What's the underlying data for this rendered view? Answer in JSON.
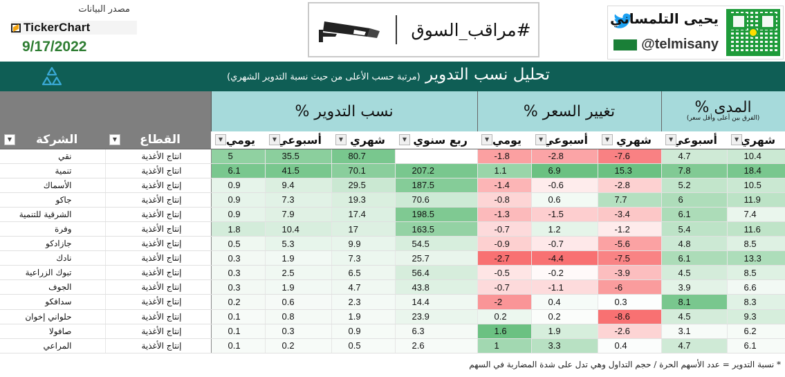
{
  "header": {
    "source_label": "مصدر البيانات",
    "provider_name": "TickerChart",
    "date": "9/17/2022",
    "banner_title": "#مراقب_السوق",
    "author_name": "يحيى التلمساني",
    "author_handle": "@telmisany"
  },
  "title_bar": {
    "title": "تحليل نسب التدوير",
    "subtitle": "(مرتبة حسب الأعلى من حيث نسبة التدوير الشهري)"
  },
  "groups": {
    "turnover": "نسب التدوير %",
    "price_change": "تغيير السعر %",
    "range": "المدى %",
    "range_note": "(الفرق بين أعلى وأقل سعر)"
  },
  "columns": {
    "company": "الشركة",
    "sector": "القطاع",
    "daily": "يومي",
    "weekly": "أسبوعي",
    "monthly": "شهري",
    "quarter_annual": "ربع سنوي"
  },
  "colors": {
    "title_bar": "#0f5e55",
    "group_header": "#a6dadb",
    "positive_strong": "#63be7b",
    "negative_strong": "#f8696b",
    "date_green": "#2e7d32"
  },
  "rows": [
    {
      "company": "نقي",
      "sector": "انتاج الأغذية",
      "t_daily": "5",
      "t_weekly": "35.5",
      "t_monthly": "80.7",
      "t_quarter": "",
      "p_daily": "-1.8",
      "p_weekly": "-2.8",
      "p_monthly": "-7.6",
      "r_weekly": "4.7",
      "r_monthly": "10.4"
    },
    {
      "company": "تنمية",
      "sector": "انتاج الأغذية",
      "t_daily": "6.1",
      "t_weekly": "41.5",
      "t_monthly": "70.1",
      "t_quarter": "207.2",
      "p_daily": "1.1",
      "p_weekly": "6.9",
      "p_monthly": "15.3",
      "r_weekly": "7.8",
      "r_monthly": "18.4"
    },
    {
      "company": "الأسماك",
      "sector": "إنتاج الأغذية",
      "t_daily": "0.9",
      "t_weekly": "9.4",
      "t_monthly": "29.5",
      "t_quarter": "187.5",
      "p_daily": "-1.4",
      "p_weekly": "-0.6",
      "p_monthly": "-2.8",
      "r_weekly": "5.2",
      "r_monthly": "10.5"
    },
    {
      "company": "جاكو",
      "sector": "إنتاج الأغذية",
      "t_daily": "0.9",
      "t_weekly": "7.3",
      "t_monthly": "19.3",
      "t_quarter": "70.6",
      "p_daily": "-0.8",
      "p_weekly": "0.6",
      "p_monthly": "7.7",
      "r_weekly": "6",
      "r_monthly": "11.9"
    },
    {
      "company": "الشرقية للتنمية",
      "sector": "إنتاج الأغذية",
      "t_daily": "0.9",
      "t_weekly": "7.9",
      "t_monthly": "17.4",
      "t_quarter": "198.5",
      "p_daily": "-1.3",
      "p_weekly": "-1.5",
      "p_monthly": "-3.4",
      "r_weekly": "6.1",
      "r_monthly": "7.4"
    },
    {
      "company": "وفرة",
      "sector": "إنتاج الأغذية",
      "t_daily": "1.8",
      "t_weekly": "10.4",
      "t_monthly": "17",
      "t_quarter": "163.5",
      "p_daily": "-0.7",
      "p_weekly": "1.2",
      "p_monthly": "-1.2",
      "r_weekly": "5.4",
      "r_monthly": "11.6"
    },
    {
      "company": "جازادكو",
      "sector": "إنتاج الأغذية",
      "t_daily": "0.5",
      "t_weekly": "5.3",
      "t_monthly": "9.9",
      "t_quarter": "54.5",
      "p_daily": "-0.9",
      "p_weekly": "-0.7",
      "p_monthly": "-5.6",
      "r_weekly": "4.8",
      "r_monthly": "8.5"
    },
    {
      "company": "نادك",
      "sector": "إنتاج الأغذية",
      "t_daily": "0.3",
      "t_weekly": "1.9",
      "t_monthly": "7.3",
      "t_quarter": "25.7",
      "p_daily": "-2.7",
      "p_weekly": "-4.4",
      "p_monthly": "-7.5",
      "r_weekly": "6.1",
      "r_monthly": "13.3"
    },
    {
      "company": "تبوك الزراعية",
      "sector": "إنتاج الأغذية",
      "t_daily": "0.3",
      "t_weekly": "2.5",
      "t_monthly": "6.5",
      "t_quarter": "56.4",
      "p_daily": "-0.5",
      "p_weekly": "-0.2",
      "p_monthly": "-3.9",
      "r_weekly": "4.5",
      "r_monthly": "8.5"
    },
    {
      "company": "الجوف",
      "sector": "إنتاج الأغذية",
      "t_daily": "0.3",
      "t_weekly": "1.9",
      "t_monthly": "4.7",
      "t_quarter": "43.8",
      "p_daily": "-0.7",
      "p_weekly": "-1.1",
      "p_monthly": "-6",
      "r_weekly": "3.9",
      "r_monthly": "6.6"
    },
    {
      "company": "سدافكو",
      "sector": "إنتاج الأغذية",
      "t_daily": "0.2",
      "t_weekly": "0.6",
      "t_monthly": "2.3",
      "t_quarter": "14.4",
      "p_daily": "-2",
      "p_weekly": "0.4",
      "p_monthly": "0.3",
      "r_weekly": "8.1",
      "r_monthly": "8.3"
    },
    {
      "company": "حلواني إخوان",
      "sector": "إنتاج الأغذية",
      "t_daily": "0.1",
      "t_weekly": "0.8",
      "t_monthly": "1.9",
      "t_quarter": "23.9",
      "p_daily": "0.2",
      "p_weekly": "0.2",
      "p_monthly": "-8.6",
      "r_weekly": "4.5",
      "r_monthly": "9.3"
    },
    {
      "company": "صافولا",
      "sector": "إنتاج الأغذية",
      "t_daily": "0.1",
      "t_weekly": "0.3",
      "t_monthly": "0.9",
      "t_quarter": "6.3",
      "p_daily": "1.6",
      "p_weekly": "1.9",
      "p_monthly": "-2.6",
      "r_weekly": "3.1",
      "r_monthly": "6.2"
    },
    {
      "company": "المراعي",
      "sector": "إنتاج الأغذية",
      "t_daily": "0.1",
      "t_weekly": "0.2",
      "t_monthly": "0.5",
      "t_quarter": "2.6",
      "p_daily": "1",
      "p_weekly": "3.3",
      "p_monthly": "0.4",
      "r_weekly": "4.7",
      "r_monthly": "6.1"
    }
  ],
  "footnote": "* نسبة التدوير = عدد الأسهم الحرة / حجم التداول وهي تدل على شدة المضاربة في السهم"
}
